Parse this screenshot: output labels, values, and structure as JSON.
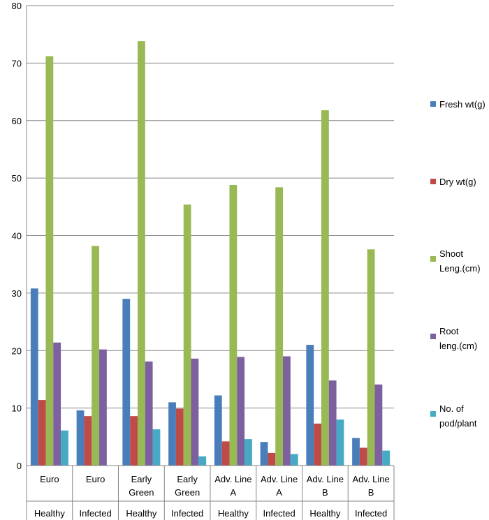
{
  "chart_data": {
    "type": "bar",
    "title": "",
    "xlabel": "",
    "ylabel": "",
    "ylim": [
      0,
      80
    ],
    "yticks": [
      "0",
      "10",
      "20",
      "30",
      "40",
      "50",
      "60",
      "70",
      "80"
    ],
    "grid": true,
    "legend_position": "right",
    "categories": [
      {
        "variety": [
          "Euro"
        ],
        "condition": "Healthy"
      },
      {
        "variety": [
          "Euro"
        ],
        "condition": "Infected"
      },
      {
        "variety": [
          "Early",
          "Green"
        ],
        "condition": "Healthy"
      },
      {
        "variety": [
          "Early",
          "Green"
        ],
        "condition": "Infected"
      },
      {
        "variety": [
          "Adv. Line",
          "A"
        ],
        "condition": "Healthy"
      },
      {
        "variety": [
          "Adv. Line",
          "A"
        ],
        "condition": "Infected"
      },
      {
        "variety": [
          "Adv. Line",
          "B"
        ],
        "condition": "Healthy"
      },
      {
        "variety": [
          "Adv. Line",
          "B"
        ],
        "condition": "Infected"
      }
    ],
    "series": [
      {
        "name": [
          "Fresh wt(g)"
        ],
        "color": "#4a7ebb",
        "values": [
          30.8,
          9.6,
          29.0,
          11.0,
          12.2,
          4.1,
          21.0,
          4.8
        ]
      },
      {
        "name": [
          "Dry wt(g)"
        ],
        "color": "#be4b48",
        "values": [
          11.4,
          8.6,
          8.6,
          9.9,
          4.2,
          2.2,
          7.3,
          3.1
        ]
      },
      {
        "name": [
          "Shoot",
          "Leng.(cm)"
        ],
        "color": "#98b954",
        "values": [
          71.2,
          38.2,
          73.8,
          45.4,
          48.8,
          48.4,
          61.8,
          37.6
        ]
      },
      {
        "name": [
          "Root",
          "leng.(cm)"
        ],
        "color": "#7d60a0",
        "values": [
          21.4,
          20.2,
          18.1,
          18.6,
          18.9,
          19.0,
          14.8,
          14.1
        ]
      },
      {
        "name": [
          "No. of",
          "pod/plant"
        ],
        "color": "#46aac5",
        "values": [
          6.1,
          0,
          6.3,
          1.6,
          4.6,
          2.0,
          8.0,
          2.6
        ]
      }
    ]
  }
}
